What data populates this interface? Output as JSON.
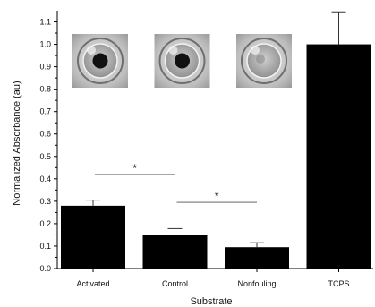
{
  "chart_data": {
    "type": "bar",
    "categories": [
      "Activated",
      "Control",
      "Nonfouling",
      "TCPS"
    ],
    "values": [
      0.28,
      0.15,
      0.095,
      1.0
    ],
    "errors": [
      0.025,
      0.028,
      0.02,
      0.145
    ],
    "xlabel": "Substrate",
    "ylabel": "Normalized Absorbance (au)",
    "ylim": [
      0,
      1.15
    ],
    "yticks": [
      "0.0",
      "0.1",
      "0.2",
      "0.3",
      "0.4",
      "0.5",
      "0.6",
      "0.7",
      "0.8",
      "0.9",
      "1.0",
      "1.1"
    ],
    "bar_color": "#000000",
    "significance": [
      {
        "from": "Activated",
        "to": "Control",
        "y": 0.42,
        "label": "*"
      },
      {
        "from": "Control",
        "to": "Nonfouling",
        "y": 0.295,
        "label": "*"
      }
    ],
    "inset_images": [
      {
        "name": "activated-well-photo",
        "category": "Activated",
        "spot": "dark"
      },
      {
        "name": "control-well-photo",
        "category": "Control",
        "spot": "dark"
      },
      {
        "name": "nonfouling-well-photo",
        "category": "Nonfouling",
        "spot": "faint"
      }
    ],
    "grid": false
  }
}
